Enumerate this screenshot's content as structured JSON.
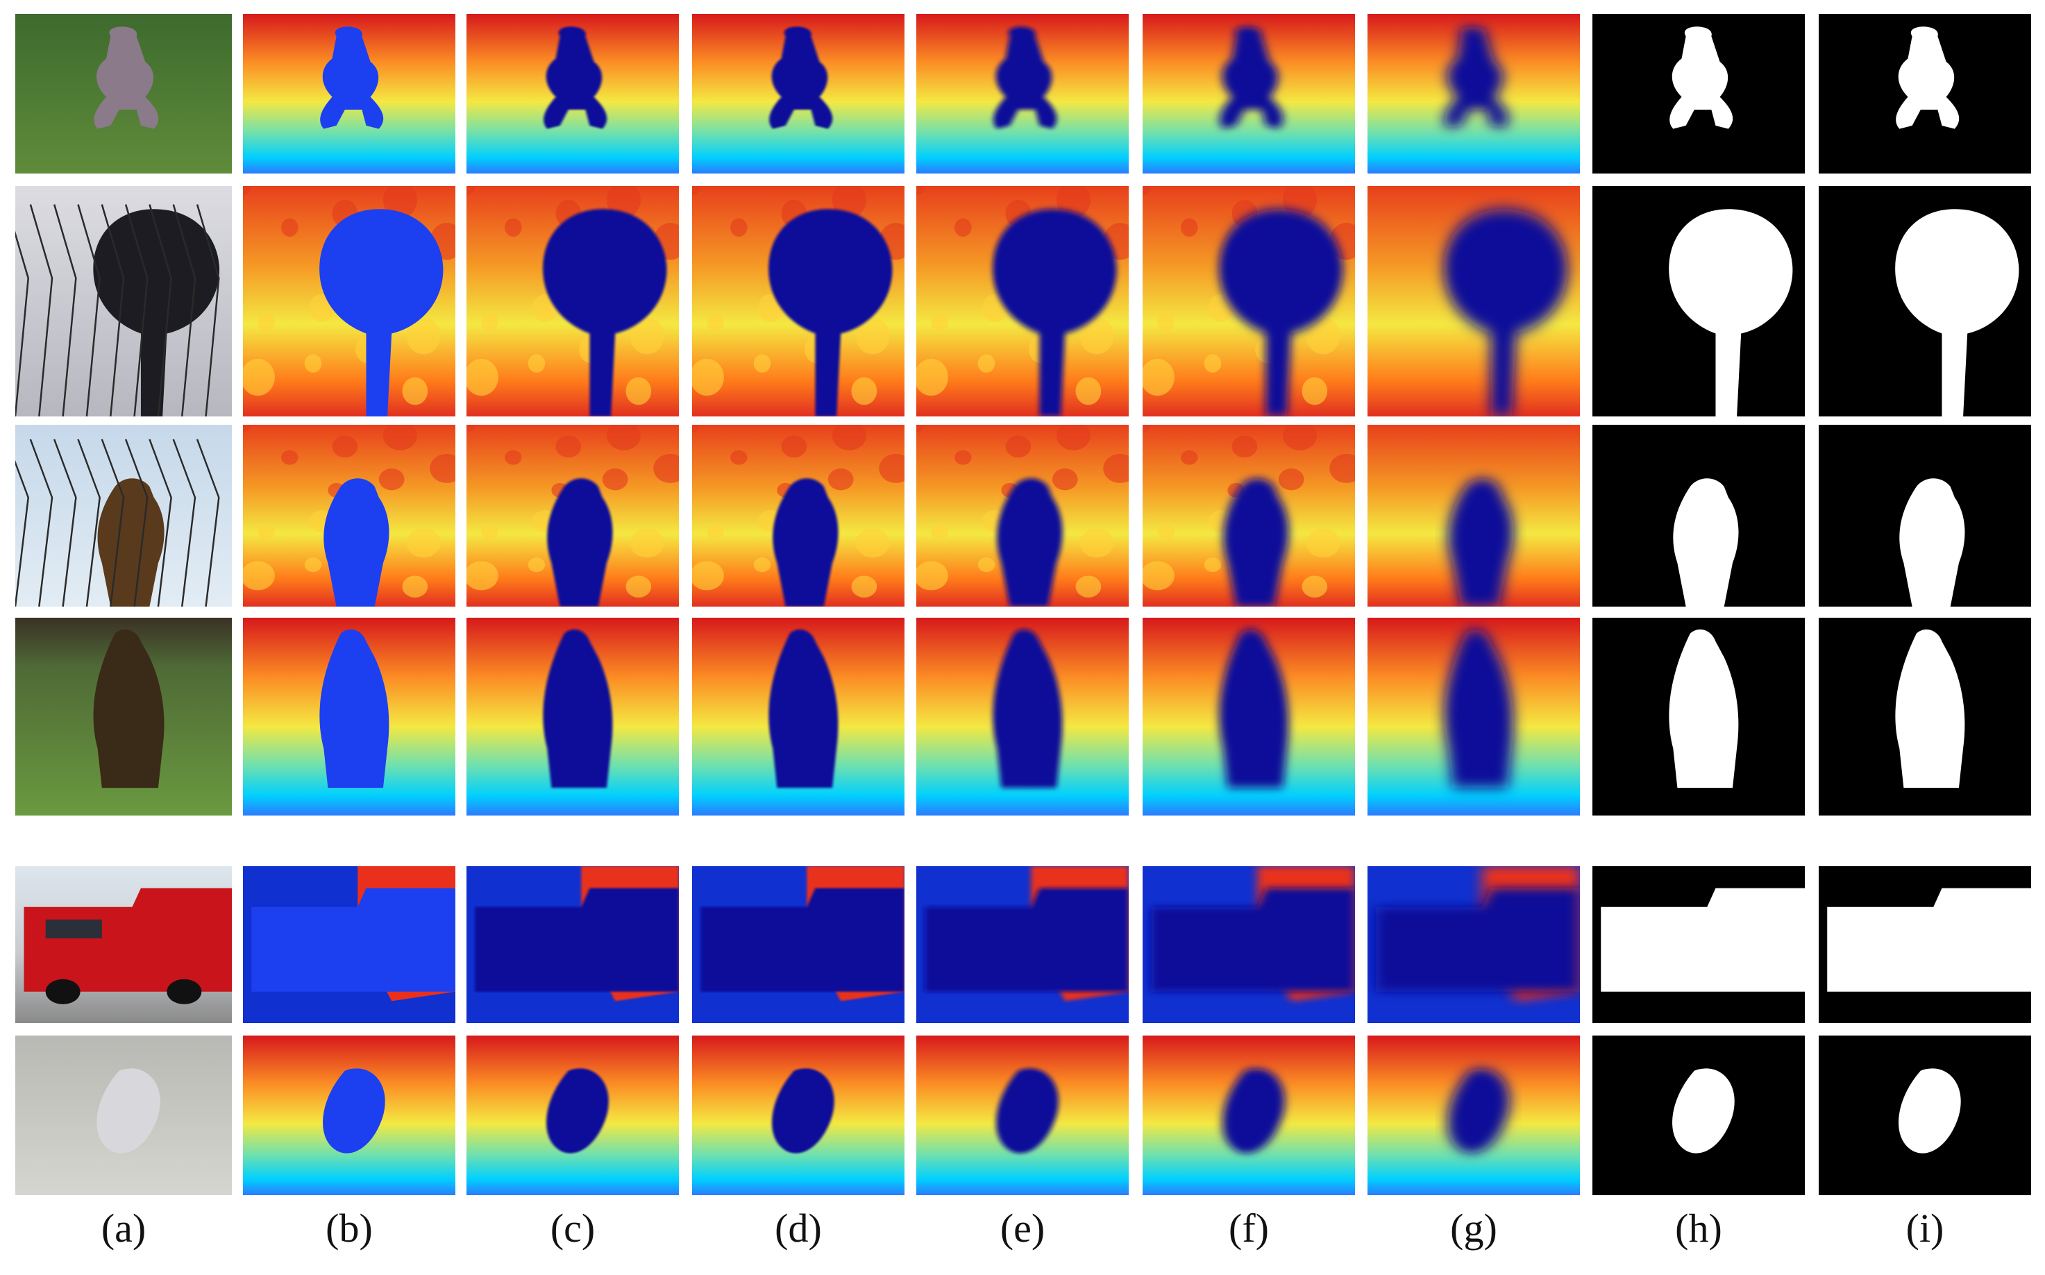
{
  "figure": {
    "columns": [
      {
        "id": "a",
        "label": "(a)",
        "kind": "rgb"
      },
      {
        "id": "b",
        "label": "(b)",
        "kind": "depth"
      },
      {
        "id": "c",
        "label": "(c)",
        "kind": "depth"
      },
      {
        "id": "d",
        "label": "(d)",
        "kind": "depth"
      },
      {
        "id": "e",
        "label": "(e)",
        "kind": "depth"
      },
      {
        "id": "f",
        "label": "(f)",
        "kind": "depth"
      },
      {
        "id": "g",
        "label": "(g)",
        "kind": "depth"
      },
      {
        "id": "h",
        "label": "(h)",
        "kind": "mask"
      },
      {
        "id": "i",
        "label": "(i)",
        "kind": "mask"
      }
    ],
    "rows": [
      {
        "id": "squirrel",
        "subject": "squirrel"
      },
      {
        "id": "clock",
        "subject": "street-clock"
      },
      {
        "id": "hawk",
        "subject": "hawk-on-branch"
      },
      {
        "id": "eagle",
        "subject": "eagle-on-perch"
      },
      {
        "id": "firetruck",
        "subject": "fire-truck"
      },
      {
        "id": "heater",
        "subject": "electric-heater"
      }
    ],
    "colors": {
      "depth_far": "#d7191c",
      "depth_mid": "#f4e842",
      "depth_near": "#00d0ff",
      "object": "#0a0a9a",
      "mask_bg": "#000000",
      "mask_fg": "#ffffff"
    }
  }
}
